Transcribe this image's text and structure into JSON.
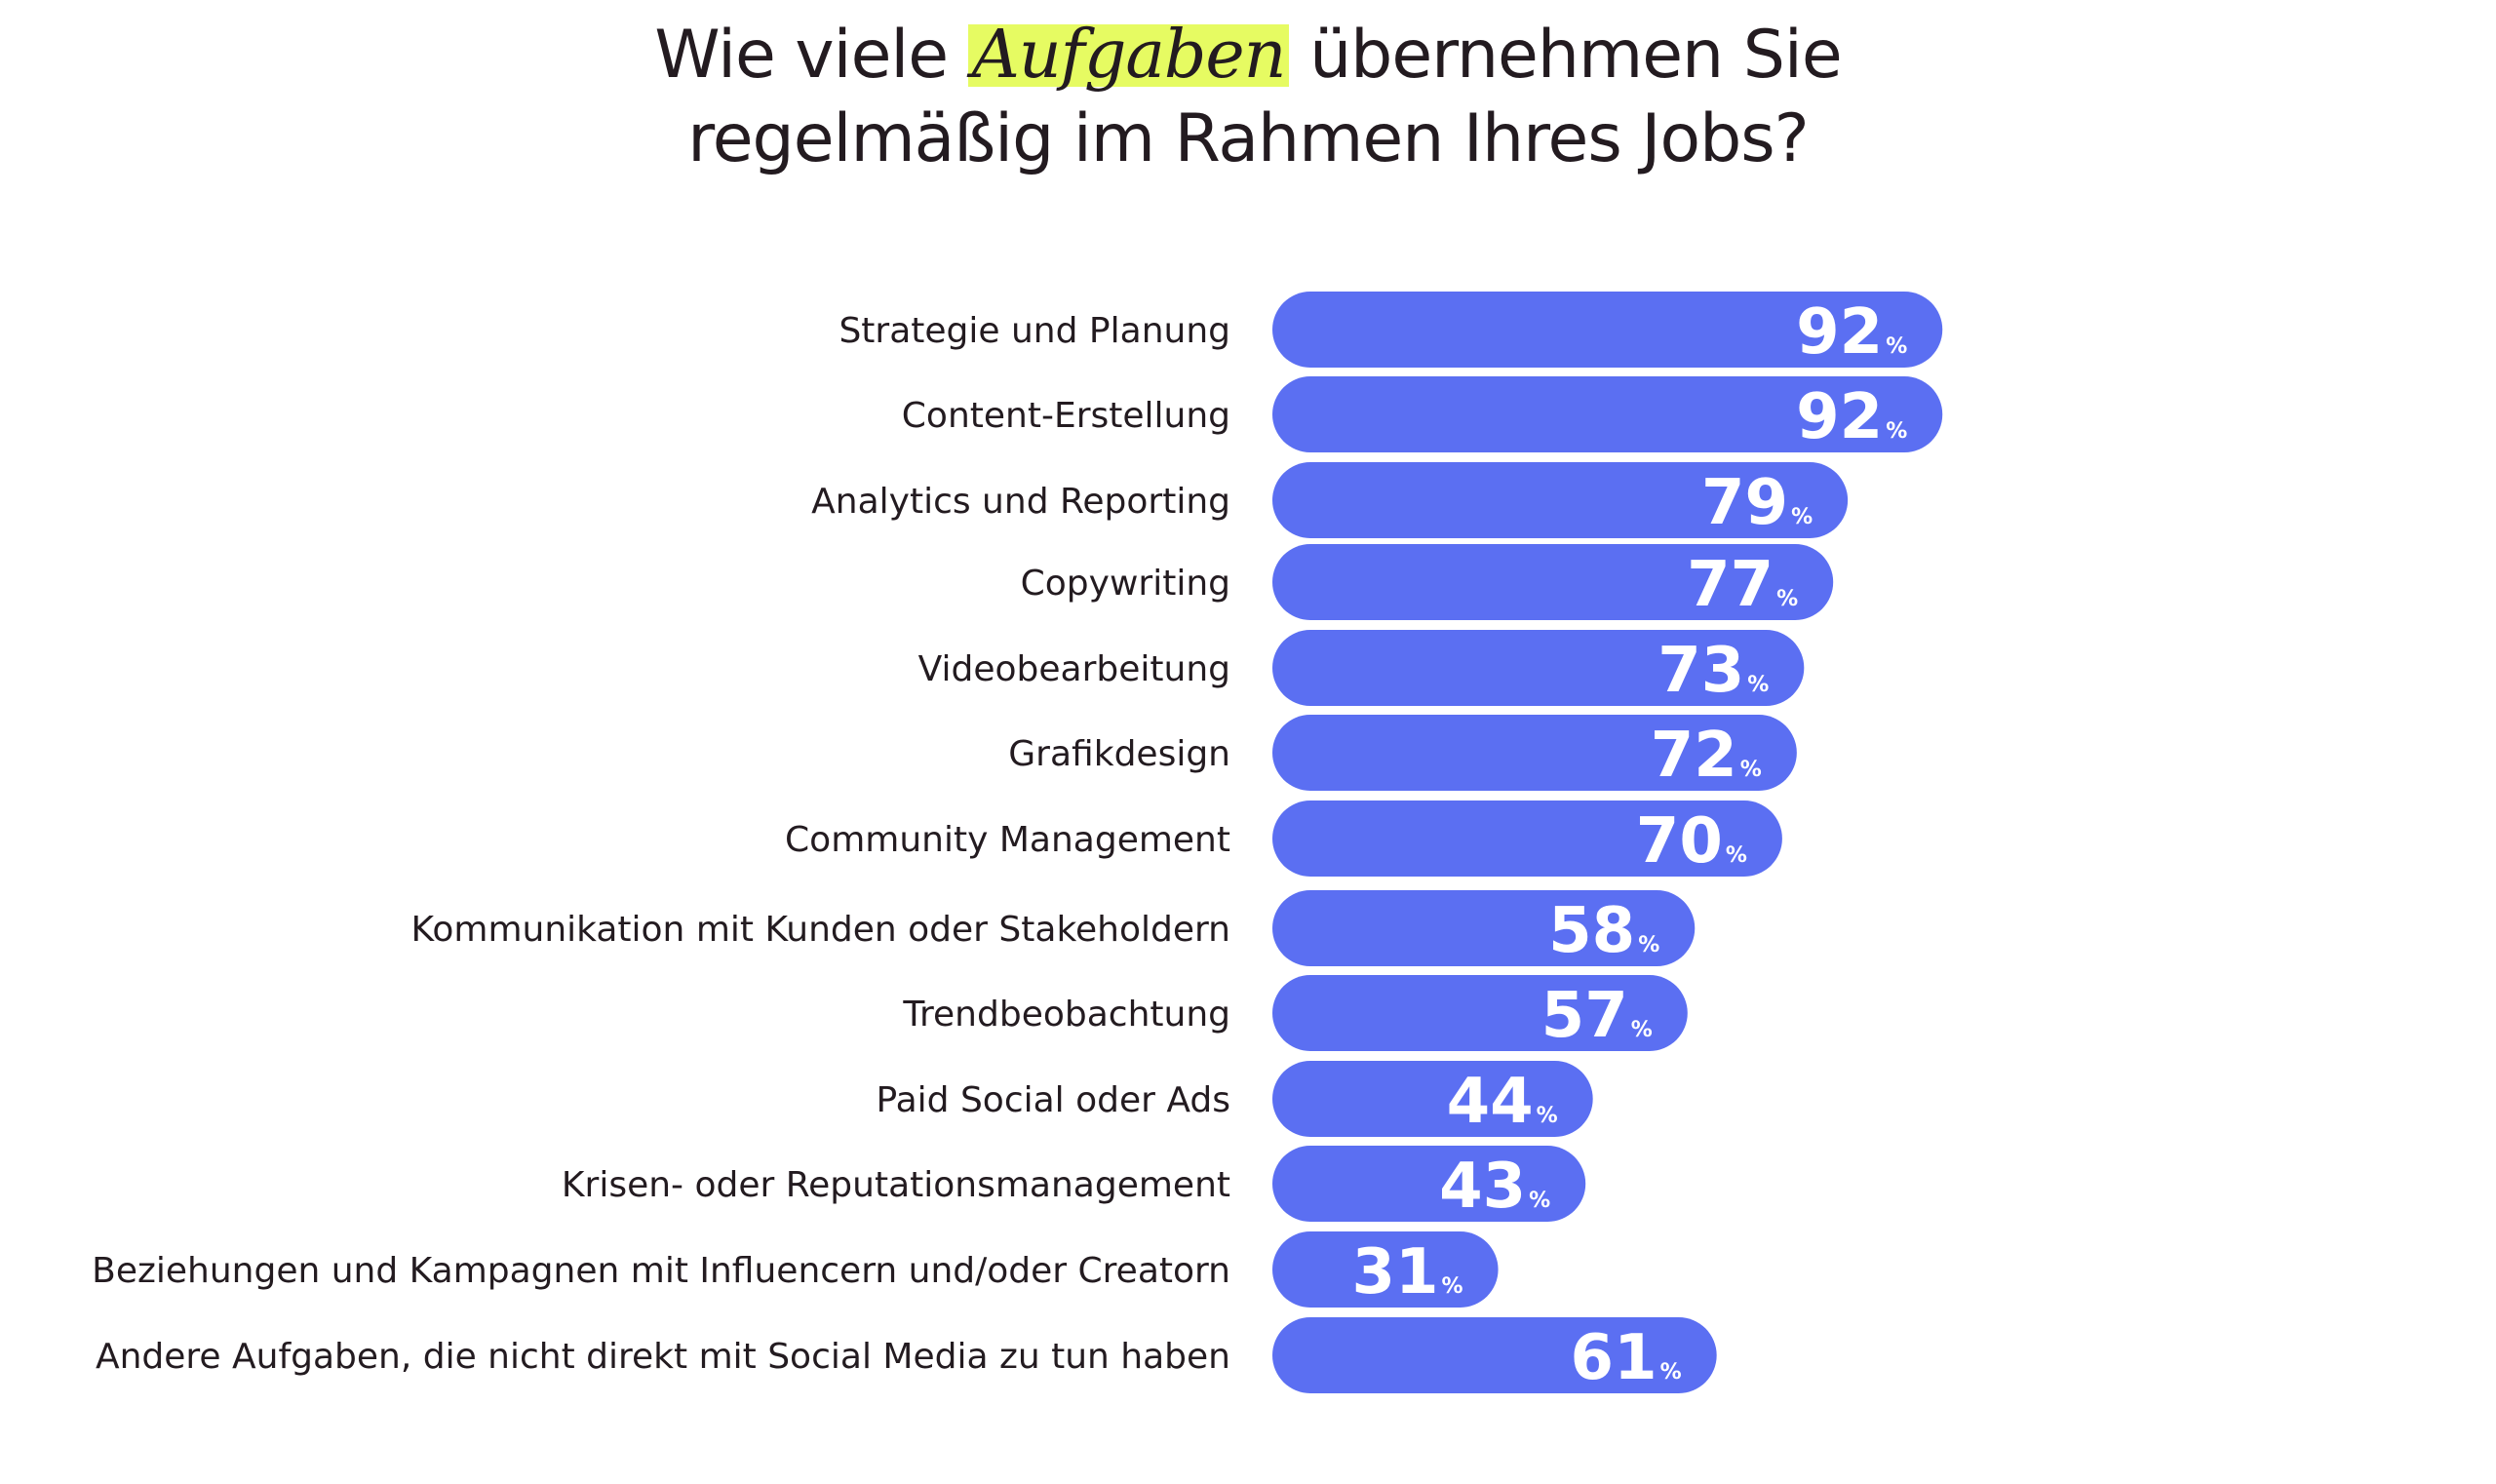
{
  "title": {
    "line1_before": "Wie viele ",
    "line1_highlight": "Aufgaben",
    "line1_after": " übernehmen Sie",
    "line2": "regelmäßig im Rahmen Ihres Jobs?"
  },
  "chart_data": {
    "type": "bar",
    "orientation": "horizontal",
    "bar_color": "#5b6ff2",
    "highlight_color": "#e6fb62",
    "unit": "%",
    "grid": false,
    "categories": [
      "Strategie und Planung",
      "Content-Erstellung",
      "Analytics und Reporting",
      "Copywriting",
      "Videobearbeitung",
      "Grafikdesign",
      "Community Management",
      "Kommunikation mit Kunden oder Stakeholdern",
      "Trendbeobachtung",
      "Paid Social oder Ads",
      "Krisen- oder Reputationsmanagement",
      "Beziehungen und Kampagnen mit Influencern und/oder Creatorn",
      "Andere Aufgaben, die nicht direkt mit Social Media zu tun haben"
    ],
    "values": [
      92,
      92,
      79,
      77,
      73,
      72,
      70,
      58,
      57,
      44,
      43,
      31,
      61
    ]
  }
}
